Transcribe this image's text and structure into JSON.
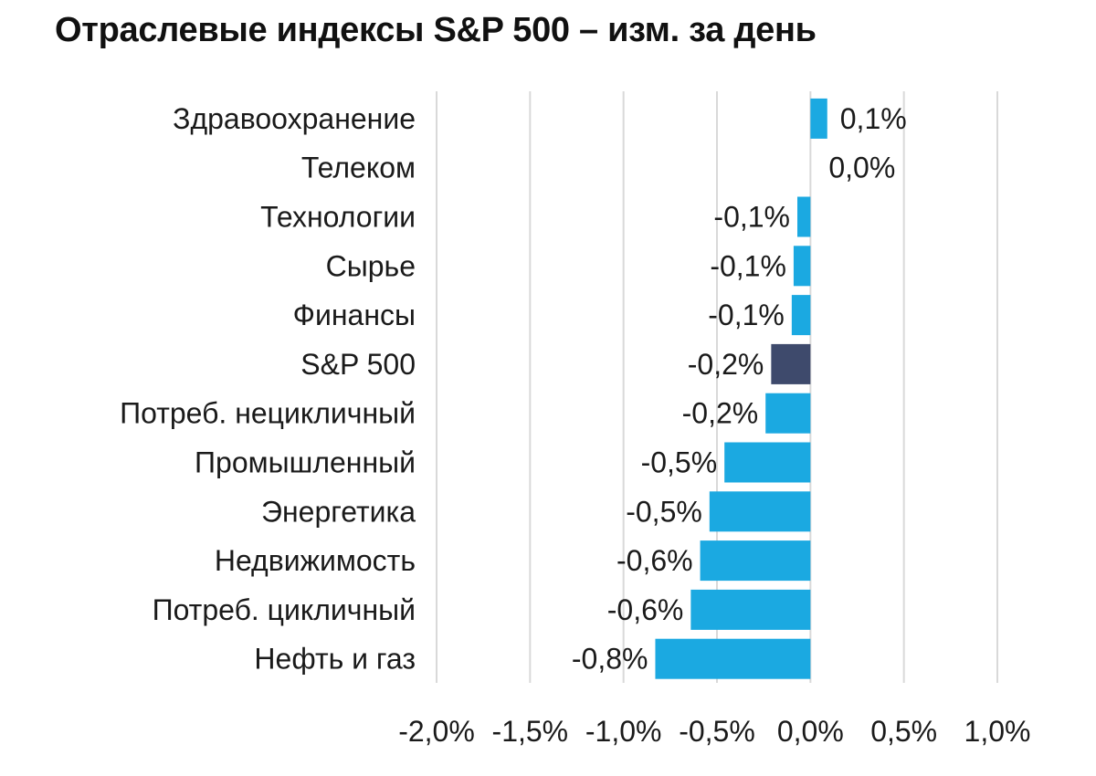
{
  "chart_data": {
    "type": "bar",
    "orientation": "horizontal",
    "title": "Отраслевые индексы S&P 500 – изм. за день",
    "xlabel": "",
    "ylabel": "",
    "xlim": [
      -2.0,
      1.0
    ],
    "grid": true,
    "legend": "none",
    "categories": [
      "Здравоохранение",
      "Телеком",
      "Технологии",
      "Сырье",
      "Финансы",
      "S&P 500",
      "Потреб. нецикличный",
      "Промышленный",
      "Энергетика",
      "Недвижимость",
      "Потреб. цикличный",
      "Нефть и газ"
    ],
    "values": [
      0.09,
      0.0,
      -0.07,
      -0.09,
      -0.1,
      -0.21,
      -0.24,
      -0.46,
      -0.54,
      -0.59,
      -0.64,
      -0.83
    ],
    "data_labels": [
      "0,1%",
      "0,0%",
      "-0,1%",
      "-0,1%",
      "-0,1%",
      "-0,2%",
      "-0,2%",
      "-0,5%",
      "-0,5%",
      "-0,6%",
      "-0,6%",
      "-0,8%"
    ],
    "highlight_category": "S&P 500",
    "x_ticks": [
      -2.0,
      -1.5,
      -1.0,
      -0.5,
      0.0,
      0.5,
      1.0
    ],
    "x_tick_labels": [
      "-2,0%",
      "-1,5%",
      "-1,0%",
      "-0,5%",
      "0,0%",
      "0,5%",
      "1,0%"
    ],
    "colors": {
      "bar": "#1ba9e1",
      "highlight": "#3e4a6c",
      "grid": "#d9d9d9",
      "text": "#1a1a1a"
    }
  }
}
